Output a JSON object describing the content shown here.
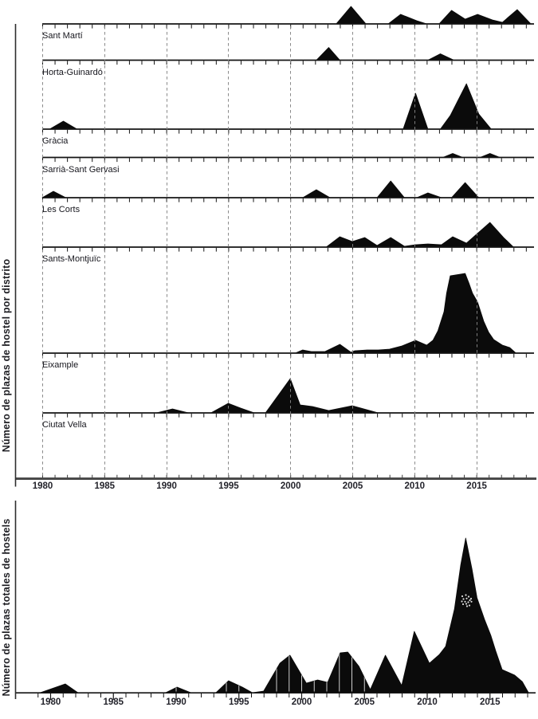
{
  "colors": {
    "background": "#ffffff",
    "fill": "#0b0b0b",
    "baseline": "#141414",
    "panel_axis": "#4a4a4a",
    "gridline": "#858585",
    "district_label": "#16161d",
    "tick_label": "#23232b"
  },
  "chart_data": [
    {
      "id": "plazas-por-distrito",
      "type": "area",
      "variant": "ridgeline-small-multiples",
      "title": "Número de plazas de hostel por distrito",
      "ylabel": "Número de plazas de hostel por distrito",
      "xlabel": "",
      "xlim": [
        1980,
        2019.5
      ],
      "x_ticks": [
        1980,
        1985,
        1990,
        1995,
        2000,
        2005,
        2010,
        2015
      ],
      "x_tick_labels": [
        "1980",
        "1985",
        "1990",
        "1995",
        "2000",
        "2005",
        "2010",
        "2015"
      ],
      "gridlines": {
        "x_years": [
          1980,
          1985,
          1990,
          1995,
          2000,
          2005,
          2010,
          2015
        ],
        "style": "dashed"
      },
      "units": "relative area height (figure shows no numeric y-axis scale)",
      "legend": "none",
      "series": [
        {
          "name": "Sant Martí",
          "points": [
            [
              2003.7,
              0
            ],
            [
              2004.9,
              22
            ],
            [
              2006.1,
              0
            ],
            [
              2007.9,
              0
            ],
            [
              2008.9,
              12
            ],
            [
              2010.2,
              4
            ],
            [
              2011.0,
              0
            ],
            [
              2012.0,
              0
            ],
            [
              2013.0,
              17
            ],
            [
              2014.1,
              6
            ],
            [
              2015.1,
              12
            ],
            [
              2016.3,
              5
            ],
            [
              2017.1,
              2
            ],
            [
              2018.3,
              18
            ],
            [
              2019.4,
              0
            ]
          ]
        },
        {
          "name": "Horta-Guinardó",
          "points": [
            [
              2002.1,
              0
            ],
            [
              2003.1,
              16
            ],
            [
              2004.0,
              0
            ],
            [
              2011.1,
              0
            ],
            [
              2012.1,
              8
            ],
            [
              2013.2,
              0
            ]
          ]
        },
        {
          "name": "Gràcia",
          "points": [
            [
              1980.6,
              0
            ],
            [
              1981.7,
              10
            ],
            [
              1982.8,
              0
            ],
            [
              2009.1,
              0
            ],
            [
              2010.1,
              45
            ],
            [
              2011.1,
              0
            ],
            [
              2012.1,
              0
            ],
            [
              2012.9,
              17
            ],
            [
              2014.2,
              57
            ],
            [
              2015.2,
              19
            ],
            [
              2016.2,
              0
            ]
          ]
        },
        {
          "name": "Sarrià-Sant Gervasi",
          "points": [
            [
              2012.3,
              0
            ],
            [
              2013.1,
              5
            ],
            [
              2013.9,
              0
            ],
            [
              2015.3,
              0
            ],
            [
              2016.1,
              5
            ],
            [
              2016.9,
              0
            ]
          ]
        },
        {
          "name": "Les Corts",
          "points": [
            [
              1980.0,
              0
            ],
            [
              1980.9,
              8
            ],
            [
              1981.9,
              0
            ],
            [
              2001.0,
              0
            ],
            [
              2002.1,
              10
            ],
            [
              2003.2,
              0
            ],
            [
              2007.0,
              0
            ],
            [
              2008.1,
              21
            ],
            [
              2009.2,
              0
            ],
            [
              2010.2,
              0
            ],
            [
              2011.1,
              6
            ],
            [
              2012.2,
              0
            ],
            [
              2013.0,
              0
            ],
            [
              2014.1,
              19
            ],
            [
              2015.2,
              0
            ]
          ]
        },
        {
          "name": "Sants-Montjuïc",
          "points": [
            [
              2002.9,
              0
            ],
            [
              2004.0,
              13
            ],
            [
              2005.0,
              7
            ],
            [
              2006.0,
              12
            ],
            [
              2007.0,
              2
            ],
            [
              2008.1,
              12
            ],
            [
              2009.2,
              1
            ],
            [
              2010.1,
              3
            ],
            [
              2011.1,
              4
            ],
            [
              2012.2,
              3
            ],
            [
              2013.1,
              13
            ],
            [
              2014.2,
              5
            ],
            [
              2016.1,
              31
            ],
            [
              2017.2,
              12
            ],
            [
              2018.0,
              0
            ]
          ]
        },
        {
          "name": "Eixample",
          "points": [
            [
              2000.4,
              0
            ],
            [
              2001.0,
              4
            ],
            [
              2001.7,
              2
            ],
            [
              2002.8,
              2
            ],
            [
              2004.0,
              11
            ],
            [
              2004.9,
              1
            ],
            [
              2005.2,
              3
            ],
            [
              2006.2,
              4
            ],
            [
              2007.1,
              4
            ],
            [
              2008.0,
              5
            ],
            [
              2009.0,
              9
            ],
            [
              2010.1,
              16
            ],
            [
              2011.0,
              10
            ],
            [
              2011.5,
              16
            ],
            [
              2011.9,
              28
            ],
            [
              2012.4,
              52
            ],
            [
              2012.6,
              75
            ],
            [
              2012.9,
              97
            ],
            [
              2014.1,
              100
            ],
            [
              2014.4,
              88
            ],
            [
              2014.7,
              75
            ],
            [
              2015.1,
              64
            ],
            [
              2015.6,
              40
            ],
            [
              2016.0,
              26
            ],
            [
              2016.4,
              17
            ],
            [
              2017.1,
              10
            ],
            [
              2017.7,
              7
            ],
            [
              2018.2,
              0
            ]
          ]
        },
        {
          "name": "Ciutat Vella",
          "points": [
            [
              1989.2,
              0
            ],
            [
              1990.5,
              5
            ],
            [
              1991.8,
              0
            ],
            [
              1993.6,
              0
            ],
            [
              1995.0,
              12
            ],
            [
              1996.0,
              6
            ],
            [
              1997.1,
              0
            ],
            [
              1998.0,
              0
            ],
            [
              2000.0,
              43
            ],
            [
              2000.8,
              10
            ],
            [
              2001.8,
              8
            ],
            [
              2003.1,
              3
            ],
            [
              2005.0,
              9
            ],
            [
              2007.1,
              0
            ]
          ]
        }
      ]
    },
    {
      "id": "plazas-totales",
      "type": "area",
      "title": "Número de plazas totales de hostels",
      "ylabel": "Número de plazas totales de hostels",
      "xlabel": "",
      "xlim": [
        1979,
        2018.5
      ],
      "x_ticks": [
        1980,
        1985,
        1990,
        1995,
        2000,
        2005,
        2010,
        2015
      ],
      "x_tick_labels": [
        "1980",
        "1985",
        "1990",
        "1995",
        "2000",
        "2005",
        "2010",
        "2015"
      ],
      "gridlines": {
        "style": "none"
      },
      "units": "relative area height (figure shows no numeric y-axis scale)",
      "legend": "none",
      "series": [
        {
          "name": "Total",
          "points": [
            [
              1979.2,
              0
            ],
            [
              1981.2,
              11
            ],
            [
              1982.2,
              0
            ],
            [
              1989.2,
              0
            ],
            [
              1990.1,
              7
            ],
            [
              1991.2,
              0
            ],
            [
              1993.2,
              0
            ],
            [
              1994.2,
              15
            ],
            [
              1995.3,
              7
            ],
            [
              1996.1,
              0
            ],
            [
              1997.0,
              2
            ],
            [
              1998.3,
              37
            ],
            [
              1999.1,
              47
            ],
            [
              2000.4,
              12
            ],
            [
              2001.3,
              16
            ],
            [
              2002.1,
              13
            ],
            [
              2003.1,
              50
            ],
            [
              2003.7,
              51
            ],
            [
              2004.6,
              33
            ],
            [
              2005.5,
              4
            ],
            [
              2006.7,
              47
            ],
            [
              2008.0,
              9
            ],
            [
              2009.0,
              77
            ],
            [
              2010.2,
              37
            ],
            [
              2011.0,
              48
            ],
            [
              2011.5,
              58
            ],
            [
              2012.2,
              105
            ],
            [
              2012.7,
              160
            ],
            [
              2013.1,
              194
            ],
            [
              2013.6,
              155
            ],
            [
              2014.0,
              119
            ],
            [
              2014.6,
              92
            ],
            [
              2015.1,
              72
            ],
            [
              2015.5,
              52
            ],
            [
              2016.0,
              29
            ],
            [
              2017.0,
              22
            ],
            [
              2017.6,
              14
            ],
            [
              2018.1,
              0
            ]
          ]
        }
      ]
    }
  ]
}
